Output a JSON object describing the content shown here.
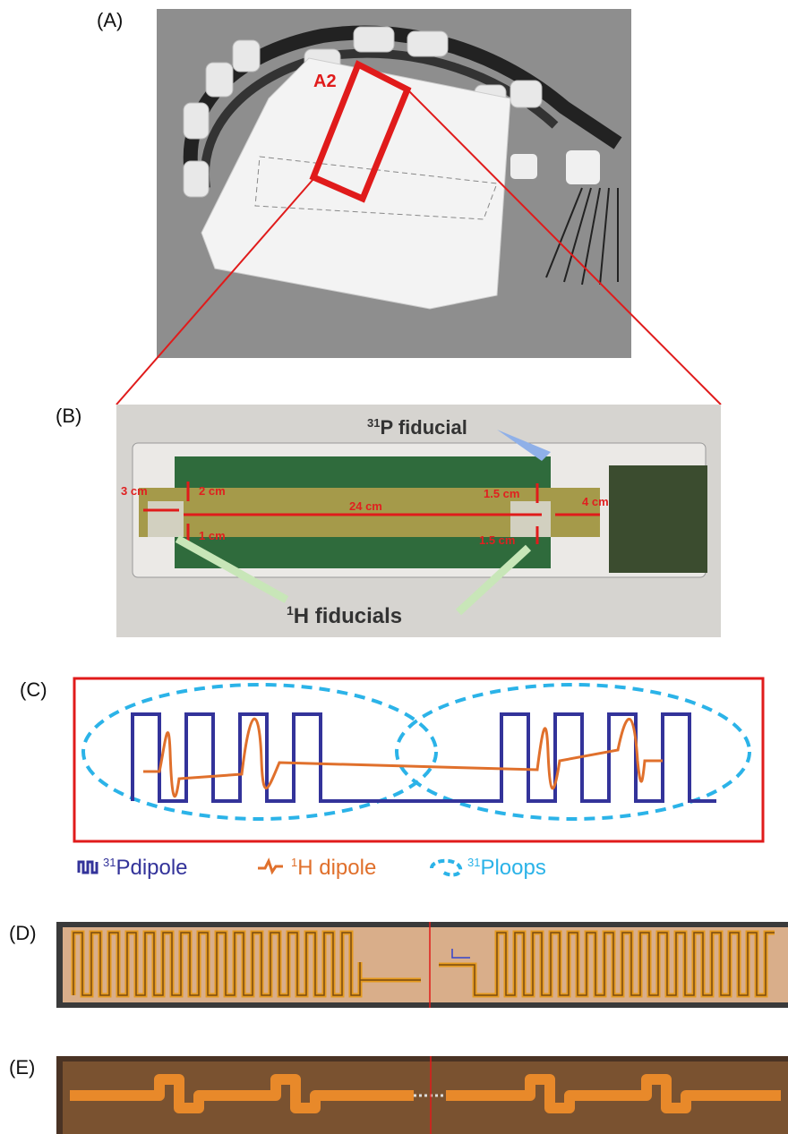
{
  "panel_a": {
    "label": "(A)",
    "region_label": "A2"
  },
  "panel_b": {
    "label": "(B)",
    "p_fiducial": {
      "sup": "31",
      "text": "P fiducial"
    },
    "dimensions": [
      "3 cm",
      "2 cm",
      "24 cm",
      "1.5 cm",
      "4 cm",
      "1 cm",
      "1.5 cm"
    ],
    "h_fiducials": {
      "sup": "1",
      "text": "H fiducials"
    }
  },
  "panel_c": {
    "label": "(C)",
    "legend": [
      {
        "sup": "31",
        "text": "Pdipole"
      },
      {
        "sup": "1",
        "text": "H dipole"
      },
      {
        "sup": "31",
        "text": "Ploops"
      }
    ]
  },
  "panel_d": {
    "label": "(D)"
  },
  "panel_e": {
    "label": "(E)"
  }
}
